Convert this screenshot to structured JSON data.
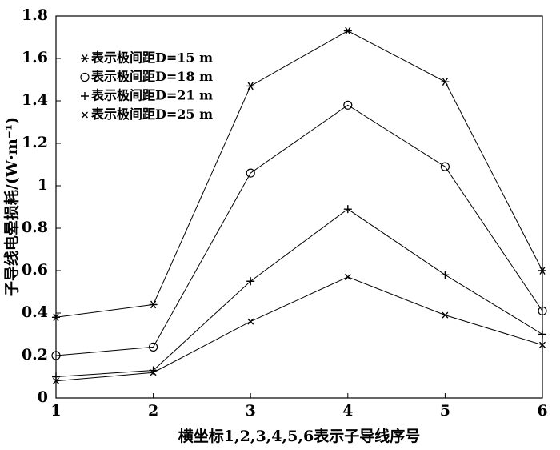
{
  "chart_data": {
    "type": "line",
    "x_label": "横坐标1,2,3,4,5,6表示子导线序号",
    "y_label": "子导线电晕损耗/(W·m⁻¹)",
    "x": [
      1,
      2,
      3,
      4,
      5,
      6
    ],
    "xlim": [
      1,
      6
    ],
    "xticks": [
      1,
      2,
      3,
      4,
      5,
      6
    ],
    "ylim": [
      0,
      1.8
    ],
    "yticks": [
      0,
      0.2,
      0.4,
      0.6,
      0.8,
      1,
      1.2,
      1.4,
      1.6,
      1.8
    ],
    "legend": "upper left",
    "series": [
      {
        "name": "表示极间距D=15 m",
        "color": "#000000",
        "marker": "star",
        "values": [
          0.38,
          0.44,
          1.47,
          1.73,
          1.49,
          0.6
        ]
      },
      {
        "name": "表示极间距D=18 m",
        "color": "#000000",
        "marker": "circle",
        "values": [
          0.2,
          0.24,
          1.06,
          1.38,
          1.09,
          0.41
        ]
      },
      {
        "name": "表示极间距D=21 m",
        "color": "#000000",
        "marker": "plus",
        "values": [
          0.1,
          0.13,
          0.55,
          0.89,
          0.58,
          0.3
        ]
      },
      {
        "name": "表示极间距D=25 m",
        "color": "#000000",
        "marker": "x",
        "values": [
          0.08,
          0.12,
          0.36,
          0.57,
          0.39,
          0.25
        ]
      }
    ]
  }
}
